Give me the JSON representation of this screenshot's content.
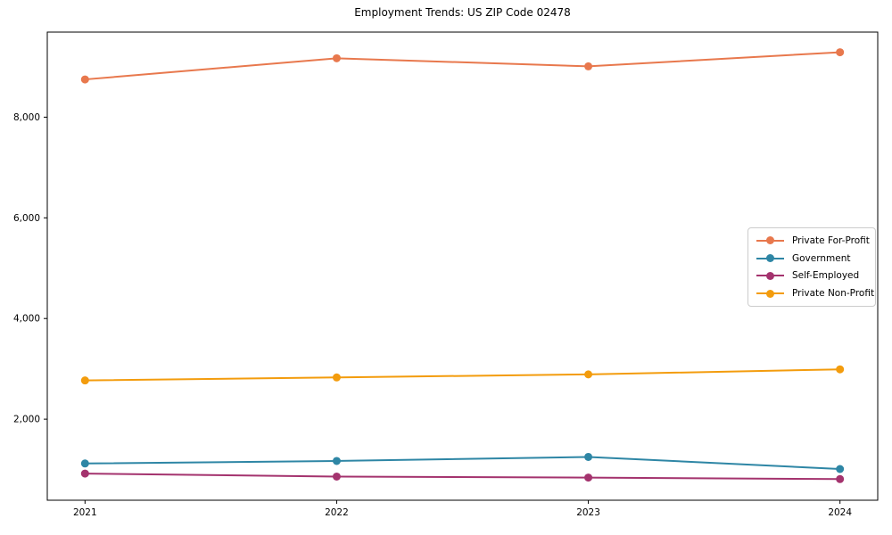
{
  "chart_data": {
    "type": "line",
    "title": "Employment Trends: US ZIP Code 02478",
    "xlabel": "",
    "ylabel": "",
    "x": [
      2021,
      2022,
      2023,
      2024
    ],
    "xtick_labels": [
      "2021",
      "2022",
      "2023",
      "2024"
    ],
    "yticks": [
      2000,
      4000,
      6000,
      8000
    ],
    "ytick_labels": [
      "2,000",
      "4,000",
      "6,000",
      "8,000"
    ],
    "xlim": [
      2020.85,
      2024.15
    ],
    "ylim": [
      390,
      9690
    ],
    "grid": false,
    "legend_position": "center-right",
    "axis_color": "#000000",
    "series": [
      {
        "name": "Private For-Profit",
        "color": "#E8784D",
        "values": [
          8750,
          9170,
          9010,
          9290
        ]
      },
      {
        "name": "Government",
        "color": "#2E86A5",
        "values": [
          1120,
          1170,
          1250,
          1010
        ]
      },
      {
        "name": "Self-Employed",
        "color": "#A4336E",
        "values": [
          920,
          860,
          840,
          810
        ]
      },
      {
        "name": "Private Non-Profit",
        "color": "#F39C0D",
        "values": [
          2770,
          2830,
          2890,
          2990
        ]
      }
    ]
  }
}
